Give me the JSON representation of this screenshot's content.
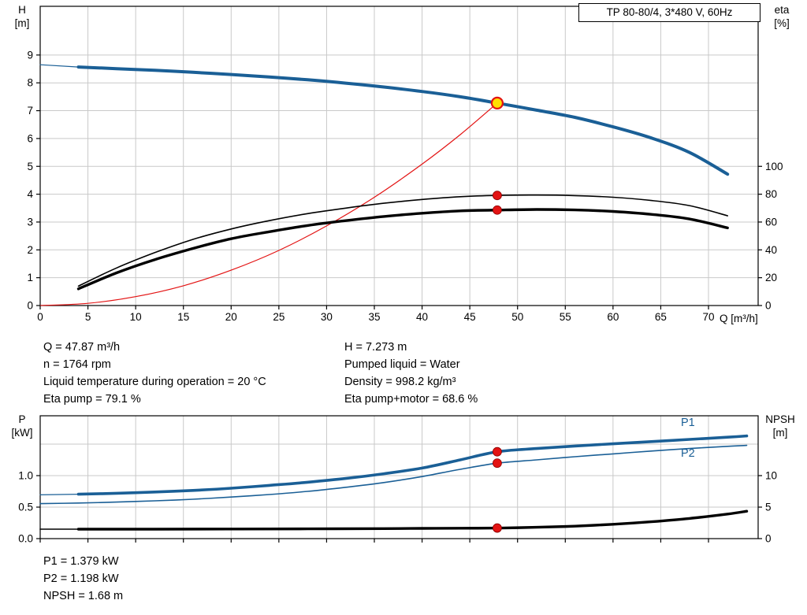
{
  "title_box": {
    "label": "TP 80-80/4, 3*480 V, 60Hz"
  },
  "colors": {
    "blue": "#1a5f96",
    "red": "#e31313",
    "black": "#000000",
    "grid": "#c9c9c9",
    "duty_fill": "#ffdf00"
  },
  "series_labels": {
    "p1": "P1",
    "p2": "P2"
  },
  "info_block": {
    "left": [
      "Q = 47.87 m³/h",
      "n = 1764 rpm",
      "Liquid temperature during operation = 20 °C",
      "Eta pump = 79.1 %"
    ],
    "right": [
      "H = 7.273 m",
      "Pumped liquid = Water",
      "Density = 998.2 kg/m³",
      "Eta pump+motor = 68.6 %"
    ]
  },
  "result_block": [
    "P1 = 1.379 kW",
    "P2 = 1.198 kW",
    "NPSH = 1.68 m"
  ],
  "chart_data": [
    {
      "id": "head-efficiency-chart",
      "type": "line",
      "xlabel": "Q [m³/h]",
      "ylabel_left": [
        "H",
        "[m]"
      ],
      "ylabel_right": [
        "eta",
        "[%]"
      ],
      "xlim": [
        0,
        75.2
      ],
      "ylim_left": [
        0,
        10.75
      ],
      "ylim_right": [
        0,
        215
      ],
      "grid": true,
      "x_ticks": [
        0,
        5,
        10,
        15,
        20,
        25,
        30,
        35,
        40,
        45,
        50,
        55,
        60,
        65,
        70
      ],
      "y_ticks_left": [
        0,
        1,
        2,
        3,
        4,
        5,
        6,
        7,
        8,
        9
      ],
      "y_ticks_right": [
        0,
        20,
        40,
        60,
        80,
        100
      ],
      "y_grid_left": [
        1,
        2,
        3,
        4,
        5,
        6,
        7,
        8,
        9
      ],
      "series": [
        {
          "name": "head-curve-lead",
          "axis": "left",
          "color": "#1a5f96",
          "width": 1.2,
          "x": [
            0,
            4
          ],
          "y": [
            8.65,
            8.57
          ]
        },
        {
          "name": "head-curve",
          "axis": "left",
          "color": "#1a5f96",
          "width": 4,
          "x": [
            4,
            8,
            12,
            16,
            20,
            24,
            28,
            32,
            36,
            40,
            44,
            47.87,
            52,
            56,
            60,
            64,
            68,
            72
          ],
          "y": [
            8.57,
            8.51,
            8.45,
            8.38,
            8.3,
            8.21,
            8.11,
            7.99,
            7.85,
            7.69,
            7.5,
            7.273,
            7.02,
            6.76,
            6.42,
            6.02,
            5.5,
            4.72
          ]
        },
        {
          "name": "system-curve",
          "axis": "left",
          "color": "#e31313",
          "width": 1.2,
          "x": [
            0,
            5,
            10,
            15,
            20,
            25,
            30,
            35,
            40,
            44,
            47.87
          ],
          "y": [
            0,
            0.08,
            0.32,
            0.71,
            1.27,
            1.98,
            2.86,
            3.89,
            5.08,
            6.14,
            7.273
          ]
        },
        {
          "name": "eta-pump-curve",
          "axis": "right",
          "color": "#000000",
          "width": 1.6,
          "x": [
            4,
            8,
            12,
            16,
            20,
            24,
            28,
            32,
            36,
            40,
            44,
            47.87,
            52,
            56,
            60,
            64,
            68,
            72
          ],
          "y": [
            14,
            27,
            38,
            47.5,
            55,
            61,
            66,
            70,
            73.5,
            76.2,
            78.2,
            79.1,
            79.4,
            79,
            77.8,
            75.5,
            71.8,
            64.5
          ]
        },
        {
          "name": "eta-pump-motor-curve",
          "axis": "right",
          "color": "#000000",
          "width": 3.4,
          "x": [
            4,
            8,
            12,
            16,
            20,
            24,
            28,
            32,
            36,
            40,
            44,
            47.87,
            52,
            56,
            60,
            64,
            68,
            72
          ],
          "y": [
            12,
            23.5,
            33,
            41,
            48,
            53,
            57.5,
            61,
            64,
            66.3,
            68,
            68.6,
            69,
            68.7,
            67.6,
            65.5,
            62.2,
            55.8
          ]
        }
      ],
      "markers": [
        {
          "name": "duty-point",
          "style": "duty-point",
          "axis": "left",
          "x": 47.87,
          "y": 7.273
        },
        {
          "name": "eta-pump-dot",
          "style": "dot",
          "axis": "right",
          "x": 47.87,
          "y": 79.1
        },
        {
          "name": "eta-pump-motor-dot",
          "style": "dot",
          "axis": "right",
          "x": 47.87,
          "y": 68.6
        }
      ]
    },
    {
      "id": "power-npsh-chart",
      "type": "line",
      "xlabel": "",
      "ylabel_left": [
        "P",
        "[kW]"
      ],
      "ylabel_right": [
        "NPSH",
        "[m]"
      ],
      "xlim": [
        0,
        75.2
      ],
      "ylim_left": [
        0,
        1.95
      ],
      "ylim_right": [
        0,
        19.5
      ],
      "grid": true,
      "x_ticks": [
        0,
        5,
        10,
        15,
        20,
        25,
        30,
        35,
        40,
        45,
        50,
        55,
        60,
        65,
        70
      ],
      "x_tick_labels": false,
      "y_ticks_left": [
        0,
        0.5,
        1
      ],
      "y_tick_labels_left": [
        "0.0",
        "0.5",
        "1.0"
      ],
      "y_ticks_right": [
        0,
        5,
        10
      ],
      "y_grid_left": [
        0.5,
        1,
        1.5
      ],
      "series": [
        {
          "name": "p1-curve-lead",
          "axis": "left",
          "color": "#1a5f96",
          "width": 1.2,
          "x": [
            0,
            4
          ],
          "y": [
            0.695,
            0.705
          ]
        },
        {
          "name": "p1-curve",
          "axis": "left",
          "color": "#1a5f96",
          "width": 3.6,
          "x": [
            4,
            8,
            12,
            16,
            20,
            24,
            28,
            32,
            36,
            40,
            44,
            47.87,
            52,
            56,
            60,
            64,
            68,
            72,
            74
          ],
          "y": [
            0.705,
            0.72,
            0.74,
            0.765,
            0.8,
            0.845,
            0.895,
            0.955,
            1.03,
            1.12,
            1.25,
            1.379,
            1.43,
            1.47,
            1.505,
            1.54,
            1.575,
            1.61,
            1.63
          ]
        },
        {
          "name": "p2-curve",
          "axis": "left",
          "color": "#1a5f96",
          "width": 1.6,
          "x": [
            0,
            4,
            8,
            12,
            16,
            20,
            24,
            28,
            32,
            36,
            40,
            44,
            47.87,
            52,
            56,
            60,
            64,
            68,
            72,
            74
          ],
          "y": [
            0.555,
            0.565,
            0.58,
            0.6,
            0.625,
            0.66,
            0.7,
            0.75,
            0.815,
            0.89,
            0.985,
            1.1,
            1.198,
            1.25,
            1.3,
            1.345,
            1.39,
            1.43,
            1.465,
            1.48
          ]
        },
        {
          "name": "npsh-curve-lead",
          "axis": "right",
          "color": "#000000",
          "width": 1.6,
          "x": [
            0,
            4
          ],
          "y": [
            1.5,
            1.5
          ]
        },
        {
          "name": "npsh-curve",
          "axis": "right",
          "color": "#000000",
          "width": 3.4,
          "x": [
            4,
            12,
            20,
            28,
            36,
            40,
            44,
            47.87,
            52,
            56,
            60,
            64,
            68,
            72,
            74
          ],
          "y": [
            1.5,
            1.5,
            1.52,
            1.55,
            1.59,
            1.62,
            1.65,
            1.68,
            1.8,
            1.98,
            2.28,
            2.68,
            3.2,
            3.9,
            4.35
          ]
        }
      ],
      "markers": [
        {
          "name": "p1-dot",
          "style": "dot",
          "axis": "left",
          "x": 47.87,
          "y": 1.379
        },
        {
          "name": "p2-dot",
          "style": "dot",
          "axis": "left",
          "x": 47.87,
          "y": 1.198
        },
        {
          "name": "npsh-dot",
          "style": "dot",
          "axis": "right",
          "x": 47.87,
          "y": 1.68
        }
      ]
    }
  ]
}
